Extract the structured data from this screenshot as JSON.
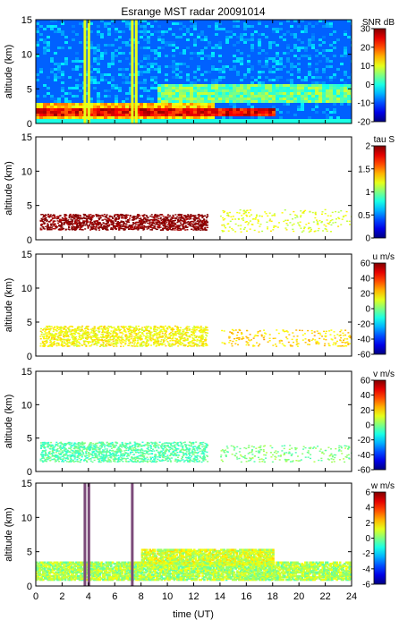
{
  "figure": {
    "title": "Esrange MST radar 20091014",
    "xlabel": "time (UT)",
    "xticks": [
      "0",
      "2",
      "4",
      "6",
      "8",
      "10",
      "12",
      "14",
      "16",
      "18",
      "20",
      "22",
      "24"
    ]
  },
  "chart_data": [
    {
      "type": "heatmap",
      "panel": "snr",
      "ylabel": "altitude (km)",
      "xlim": [
        0,
        24
      ],
      "ylim": [
        0,
        15
      ],
      "yticks": [
        "0",
        "5",
        "10",
        "15"
      ],
      "colorbar": {
        "label": "SNR dB",
        "min": -20,
        "max": 30,
        "ticks": [
          "30",
          "20",
          "10",
          "0",
          "-10",
          "-20"
        ]
      },
      "layers": [
        {
          "desc": "boundary layer echo",
          "x": [
            0,
            13.5
          ],
          "y": [
            0.8,
            3.2
          ],
          "level_db": 15
        },
        {
          "desc": "strong echo band",
          "x": [
            0,
            18
          ],
          "y": [
            1.2,
            2.4
          ],
          "level_db": 25
        },
        {
          "desc": "upper echo",
          "x": [
            9,
            24
          ],
          "y": [
            3,
            6
          ],
          "level_db": 5
        }
      ],
      "interference_columns_ut": [
        3.7,
        4.0,
        7.3,
        7.6
      ]
    },
    {
      "type": "scatter",
      "panel": "tau",
      "ylabel": "altitude (km)",
      "xlim": [
        0,
        24
      ],
      "ylim": [
        0,
        15
      ],
      "yticks": [
        "0",
        "5",
        "10",
        "15"
      ],
      "colorbar": {
        "label": "tau S",
        "min": 0,
        "max": 2,
        "ticks": [
          "2",
          "1.5",
          "1",
          "0.5",
          "0"
        ]
      },
      "regions": [
        {
          "x": [
            0.3,
            13
          ],
          "y": [
            1.5,
            3.8
          ],
          "value": 2.0,
          "density": "high"
        },
        {
          "x": [
            14,
            24
          ],
          "y": [
            1.2,
            4.5
          ],
          "value": 1.2,
          "density": "low"
        }
      ]
    },
    {
      "type": "scatter",
      "panel": "u",
      "ylabel": "altitude (km)",
      "xlim": [
        0,
        24
      ],
      "ylim": [
        0,
        15
      ],
      "yticks": [
        "0",
        "5",
        "10",
        "15"
      ],
      "colorbar": {
        "label": "u m/s",
        "min": -60,
        "max": 60,
        "ticks": [
          "60",
          "40",
          "20",
          "0",
          "-20",
          "-40",
          "-60"
        ]
      },
      "regions": [
        {
          "x": [
            0.3,
            13
          ],
          "y": [
            1.5,
            4.5
          ],
          "value": 15,
          "density": "high"
        },
        {
          "x": [
            14,
            24
          ],
          "y": [
            1.5,
            4
          ],
          "value": 20,
          "density": "low"
        }
      ]
    },
    {
      "type": "scatter",
      "panel": "v",
      "ylabel": "altitude (km)",
      "xlim": [
        0,
        24
      ],
      "ylim": [
        0,
        15
      ],
      "yticks": [
        "0",
        "5",
        "10",
        "15"
      ],
      "colorbar": {
        "label": "v m/s",
        "min": -60,
        "max": 60,
        "ticks": [
          "60",
          "40",
          "20",
          "0",
          "-20",
          "-40",
          "-60"
        ]
      },
      "regions": [
        {
          "x": [
            0.3,
            13
          ],
          "y": [
            1.5,
            4.5
          ],
          "value": -5,
          "density": "high"
        },
        {
          "x": [
            14,
            24
          ],
          "y": [
            1.5,
            4
          ],
          "value": 0,
          "density": "low"
        }
      ]
    },
    {
      "type": "heatmap",
      "panel": "w",
      "ylabel": "altitude (km)",
      "xlim": [
        0,
        24
      ],
      "ylim": [
        0,
        15
      ],
      "yticks": [
        "0",
        "5",
        "10",
        "15"
      ],
      "colorbar": {
        "label": "w m/s",
        "min": -6,
        "max": 6,
        "ticks": [
          "6",
          "4",
          "2",
          "0",
          "-2",
          "-4",
          "-6"
        ]
      },
      "regions": [
        {
          "x": [
            0,
            24
          ],
          "y": [
            0.8,
            3.5
          ],
          "value": 0.5
        },
        {
          "x": [
            8,
            18
          ],
          "y": [
            3,
            5.3
          ],
          "value": 1
        }
      ],
      "interference_columns_ut": [
        3.7,
        4.0,
        7.3
      ]
    }
  ]
}
